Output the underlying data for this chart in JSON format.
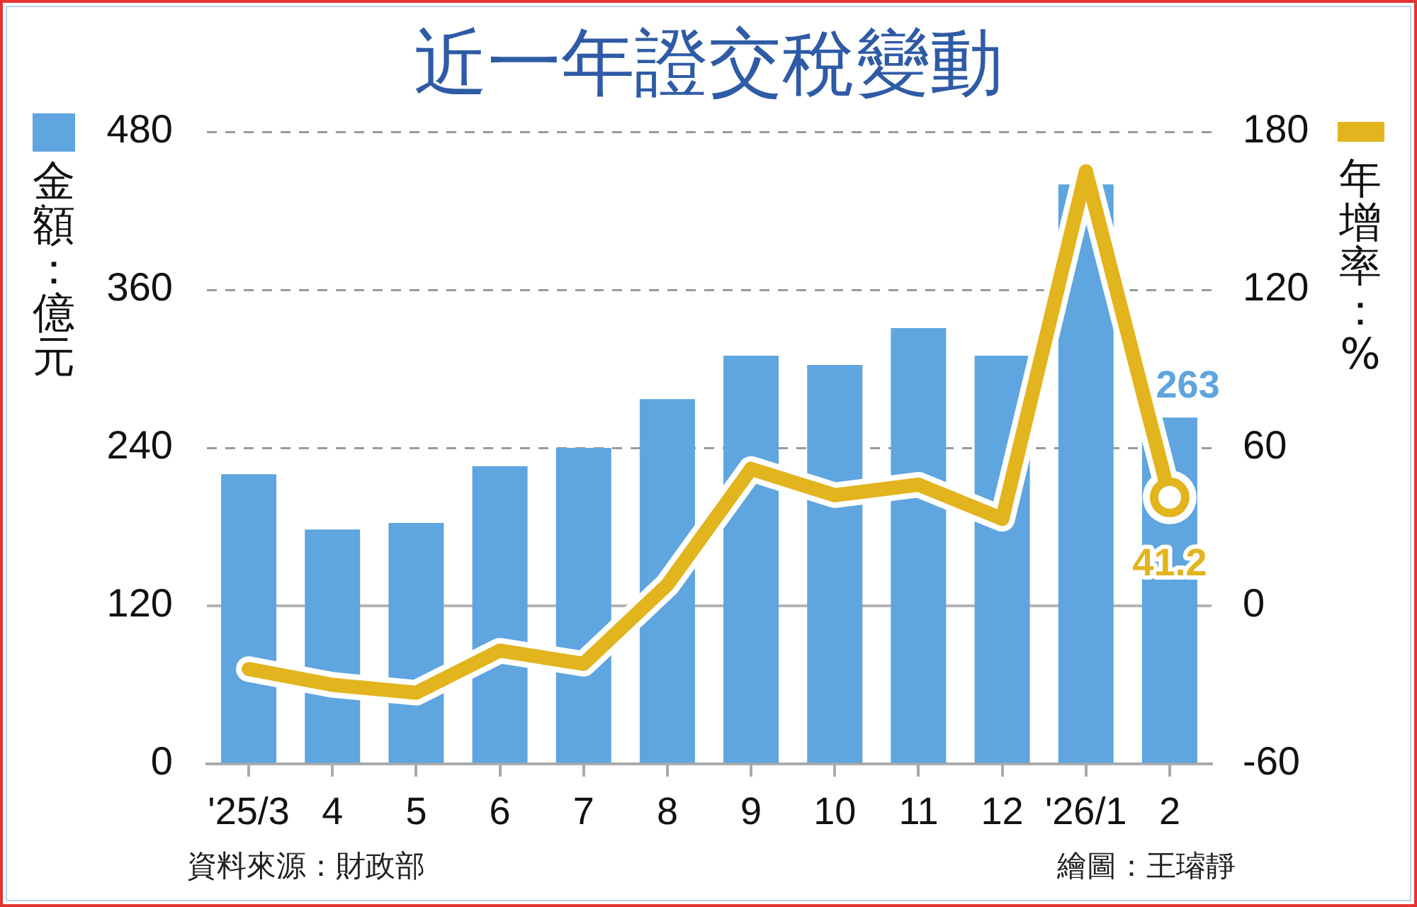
{
  "chart_data": {
    "type": "bar",
    "title": "近一年證交稅變動",
    "ylabel": "金額：億元",
    "y2label": "年增率：%",
    "categories": [
      "'25/3",
      "4",
      "5",
      "6",
      "7",
      "8",
      "9",
      "10",
      "11",
      "12",
      "'26/1",
      "2"
    ],
    "series": [
      {
        "color": "#5fa5df",
        "values": [
          220,
          178,
          183,
          226,
          240,
          277,
          310,
          303,
          331,
          310,
          440,
          263
        ],
        "value_labels": [
          null,
          null,
          null,
          null,
          null,
          null,
          null,
          null,
          null,
          null,
          null,
          "263"
        ]
      },
      {
        "type": "line",
        "axis": "y2",
        "color": "#e2b41d",
        "values": [
          -24,
          -30,
          -33,
          -17,
          -22,
          8,
          52,
          42,
          46,
          33,
          165,
          41.2
        ],
        "value_labels": [
          null,
          null,
          null,
          null,
          null,
          null,
          null,
          null,
          null,
          null,
          null,
          "41.2"
        ]
      }
    ],
    "ylim": [
      0,
      480
    ],
    "yticks": [
      0,
      120,
      240,
      360,
      480
    ],
    "y2lim": [
      -60,
      180
    ],
    "y2ticks": [
      -60,
      0,
      60,
      120,
      180
    ],
    "grid": "y",
    "ref_lines": [
      {
        "axis": "y2",
        "value": 0,
        "color": "#b4b4b4"
      }
    ],
    "annotations": [
      "資料來源：財政部",
      "繪圖：王璿靜"
    ]
  }
}
